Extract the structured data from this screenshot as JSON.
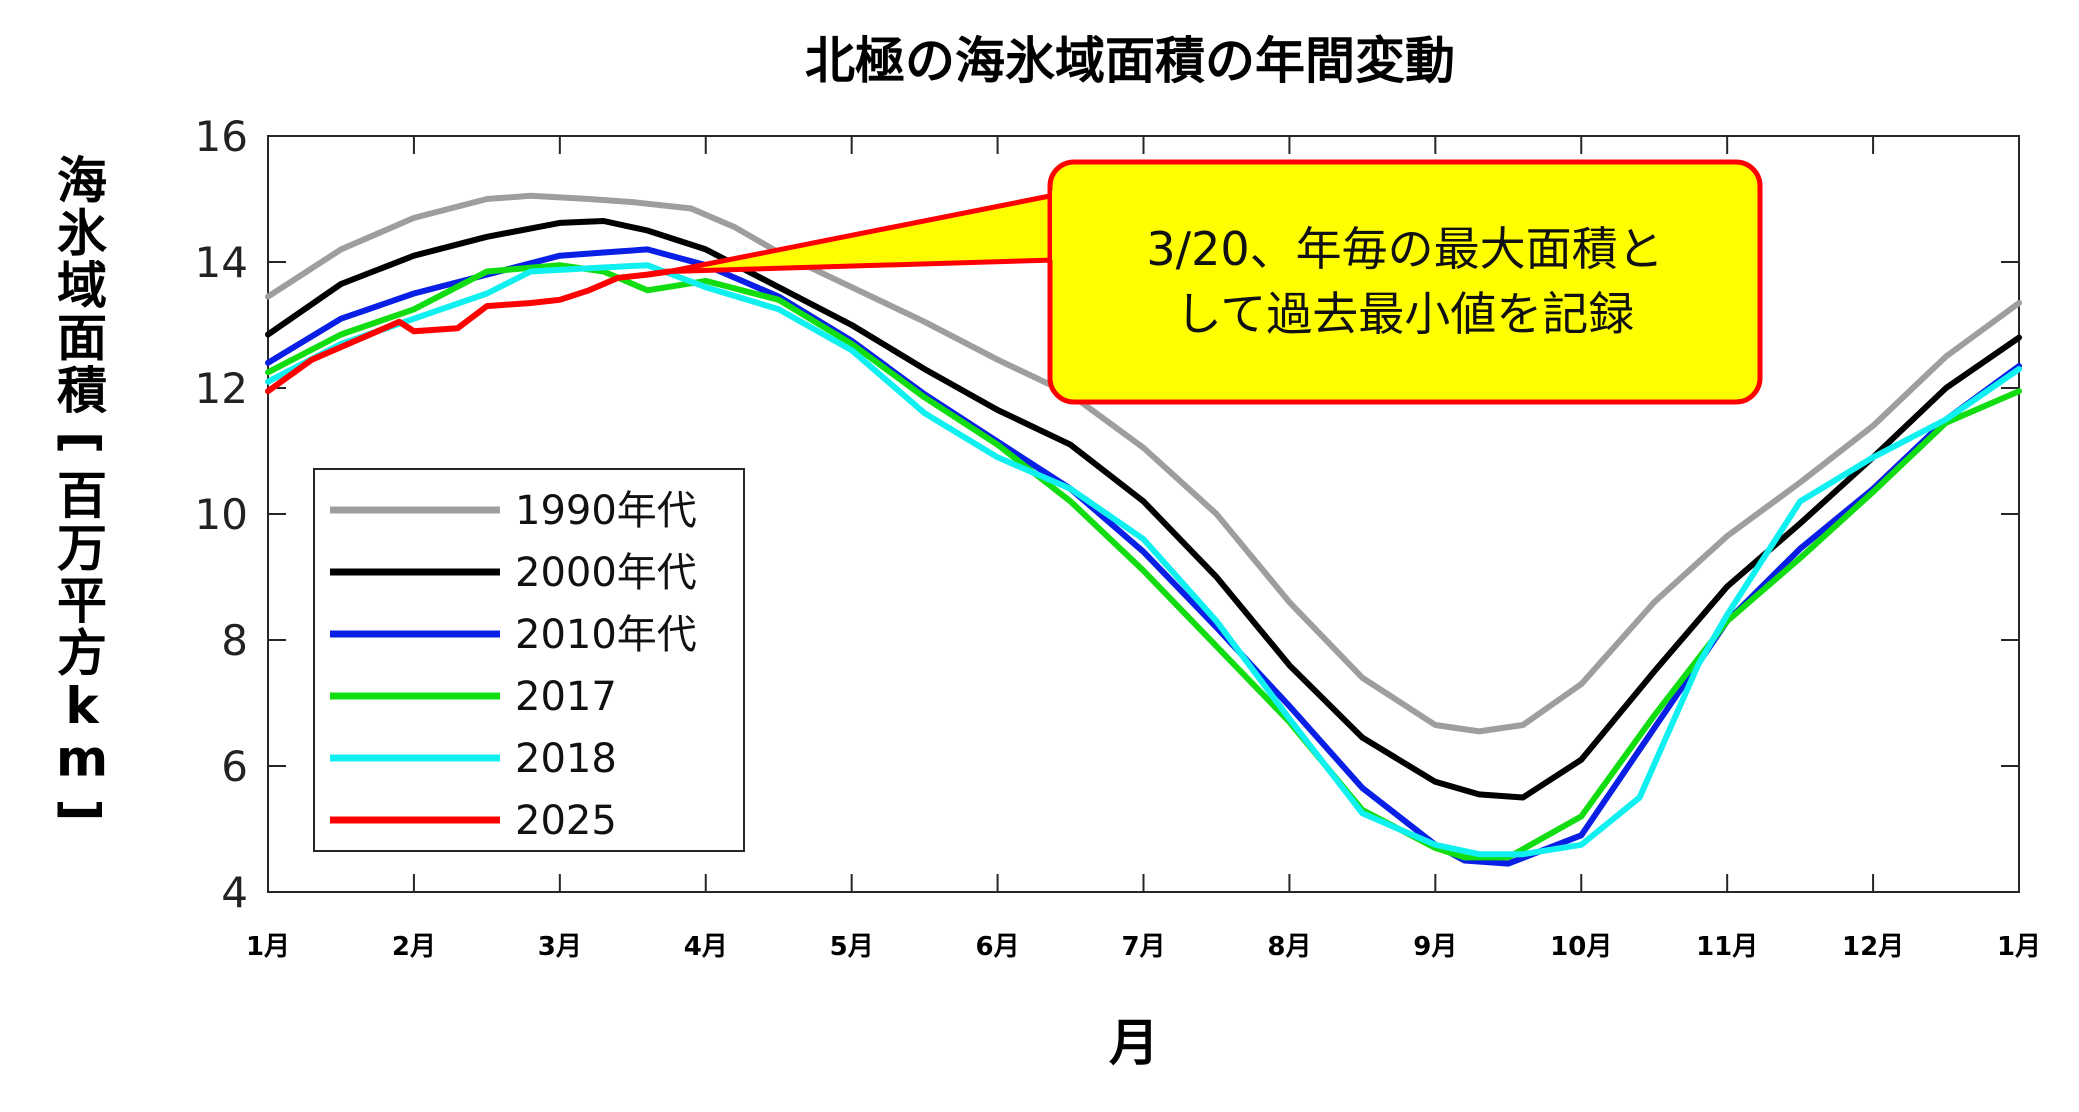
{
  "chart_data": {
    "type": "line",
    "title": "北極の海氷域面積の年間変動",
    "xlabel": "月",
    "ylabel": "海氷域面積[百万平方km]",
    "ylim": [
      4,
      16
    ],
    "yticks": [
      "4",
      "6",
      "8",
      "10",
      "12",
      "14",
      "16"
    ],
    "xlim": [
      1,
      13
    ],
    "xticks": [
      "1月",
      "2月",
      "3月",
      "4月",
      "5月",
      "6月",
      "7月",
      "8月",
      "9月",
      "10月",
      "11月",
      "12月",
      "1月"
    ],
    "grid": false,
    "legend_position": "lower-left",
    "series": [
      {
        "name": "1990年代",
        "color": "#9e9e9e",
        "points": [
          [
            1.0,
            13.45
          ],
          [
            1.5,
            14.2
          ],
          [
            2.0,
            14.7
          ],
          [
            2.5,
            15.0
          ],
          [
            2.8,
            15.05
          ],
          [
            3.2,
            15.0
          ],
          [
            3.5,
            14.95
          ],
          [
            3.9,
            14.85
          ],
          [
            4.2,
            14.55
          ],
          [
            4.5,
            14.15
          ],
          [
            5.0,
            13.6
          ],
          [
            5.5,
            13.05
          ],
          [
            6.0,
            12.45
          ],
          [
            6.5,
            11.9
          ],
          [
            7.0,
            11.05
          ],
          [
            7.5,
            10.0
          ],
          [
            8.0,
            8.6
          ],
          [
            8.5,
            7.4
          ],
          [
            9.0,
            6.65
          ],
          [
            9.3,
            6.55
          ],
          [
            9.6,
            6.65
          ],
          [
            10.0,
            7.3
          ],
          [
            10.5,
            8.6
          ],
          [
            11.0,
            9.65
          ],
          [
            11.5,
            10.5
          ],
          [
            12.0,
            11.4
          ],
          [
            12.5,
            12.5
          ],
          [
            13.0,
            13.35
          ]
        ]
      },
      {
        "name": "2000年代",
        "color": "#000000",
        "points": [
          [
            1.0,
            12.85
          ],
          [
            1.5,
            13.65
          ],
          [
            2.0,
            14.1
          ],
          [
            2.5,
            14.4
          ],
          [
            3.0,
            14.62
          ],
          [
            3.3,
            14.65
          ],
          [
            3.6,
            14.5
          ],
          [
            4.0,
            14.2
          ],
          [
            4.5,
            13.6
          ],
          [
            5.0,
            13.0
          ],
          [
            5.5,
            12.3
          ],
          [
            6.0,
            11.65
          ],
          [
            6.5,
            11.1
          ],
          [
            7.0,
            10.2
          ],
          [
            7.5,
            9.0
          ],
          [
            8.0,
            7.6
          ],
          [
            8.5,
            6.45
          ],
          [
            9.0,
            5.75
          ],
          [
            9.3,
            5.55
          ],
          [
            9.6,
            5.5
          ],
          [
            10.0,
            6.1
          ],
          [
            10.5,
            7.5
          ],
          [
            11.0,
            8.85
          ],
          [
            11.5,
            9.85
          ],
          [
            12.0,
            10.9
          ],
          [
            12.5,
            12.0
          ],
          [
            13.0,
            12.8
          ]
        ]
      },
      {
        "name": "2010年代",
        "color": "#0a1fe6",
        "points": [
          [
            1.0,
            12.4
          ],
          [
            1.5,
            13.1
          ],
          [
            2.0,
            13.5
          ],
          [
            2.5,
            13.8
          ],
          [
            3.0,
            14.1
          ],
          [
            3.3,
            14.15
          ],
          [
            3.6,
            14.2
          ],
          [
            4.0,
            13.95
          ],
          [
            4.5,
            13.45
          ],
          [
            5.0,
            12.75
          ],
          [
            5.5,
            11.9
          ],
          [
            6.0,
            11.15
          ],
          [
            6.5,
            10.4
          ],
          [
            7.0,
            9.4
          ],
          [
            7.5,
            8.2
          ],
          [
            8.0,
            6.95
          ],
          [
            8.5,
            5.65
          ],
          [
            9.0,
            4.75
          ],
          [
            9.2,
            4.5
          ],
          [
            9.5,
            4.45
          ],
          [
            10.0,
            4.9
          ],
          [
            10.5,
            6.6
          ],
          [
            11.0,
            8.3
          ],
          [
            11.5,
            9.45
          ],
          [
            12.0,
            10.4
          ],
          [
            12.5,
            11.5
          ],
          [
            13.0,
            12.35
          ]
        ]
      },
      {
        "name": "2017",
        "color": "#11dd11",
        "points": [
          [
            1.0,
            12.25
          ],
          [
            1.5,
            12.85
          ],
          [
            2.0,
            13.25
          ],
          [
            2.5,
            13.85
          ],
          [
            3.0,
            13.95
          ],
          [
            3.3,
            13.85
          ],
          [
            3.6,
            13.55
          ],
          [
            4.0,
            13.7
          ],
          [
            4.5,
            13.4
          ],
          [
            5.0,
            12.7
          ],
          [
            5.5,
            11.85
          ],
          [
            6.0,
            11.1
          ],
          [
            6.5,
            10.2
          ],
          [
            7.0,
            9.1
          ],
          [
            7.5,
            7.9
          ],
          [
            8.0,
            6.7
          ],
          [
            8.5,
            5.3
          ],
          [
            9.0,
            4.7
          ],
          [
            9.2,
            4.55
          ],
          [
            9.5,
            4.55
          ],
          [
            10.0,
            5.2
          ],
          [
            10.5,
            6.8
          ],
          [
            11.0,
            8.3
          ],
          [
            11.5,
            9.3
          ],
          [
            12.0,
            10.35
          ],
          [
            12.5,
            11.45
          ],
          [
            13.0,
            11.95
          ]
        ]
      },
      {
        "name": "2018",
        "color": "#10f0f0",
        "points": [
          [
            1.0,
            12.1
          ],
          [
            1.5,
            12.7
          ],
          [
            2.0,
            13.1
          ],
          [
            2.5,
            13.5
          ],
          [
            2.8,
            13.85
          ],
          [
            3.2,
            13.9
          ],
          [
            3.6,
            13.95
          ],
          [
            4.0,
            13.6
          ],
          [
            4.5,
            13.25
          ],
          [
            5.0,
            12.6
          ],
          [
            5.5,
            11.6
          ],
          [
            6.0,
            10.9
          ],
          [
            6.5,
            10.4
          ],
          [
            7.0,
            9.6
          ],
          [
            7.5,
            8.3
          ],
          [
            8.0,
            6.75
          ],
          [
            8.5,
            5.25
          ],
          [
            9.0,
            4.75
          ],
          [
            9.3,
            4.6
          ],
          [
            9.6,
            4.6
          ],
          [
            10.0,
            4.75
          ],
          [
            10.4,
            5.5
          ],
          [
            10.8,
            7.6
          ],
          [
            11.0,
            8.4
          ],
          [
            11.5,
            10.2
          ],
          [
            12.0,
            10.9
          ],
          [
            12.5,
            11.5
          ],
          [
            13.0,
            12.3
          ]
        ]
      },
      {
        "name": "2025",
        "color": "#ff0000",
        "points": [
          [
            1.0,
            11.95
          ],
          [
            1.3,
            12.45
          ],
          [
            1.6,
            12.75
          ],
          [
            1.9,
            13.05
          ],
          [
            2.0,
            12.9
          ],
          [
            2.3,
            12.95
          ],
          [
            2.5,
            13.3
          ],
          [
            2.8,
            13.35
          ],
          [
            3.0,
            13.4
          ],
          [
            3.2,
            13.55
          ],
          [
            3.4,
            13.75
          ],
          [
            3.6,
            13.8
          ],
          [
            3.75,
            13.85
          ]
        ]
      }
    ],
    "annotation": {
      "lines": [
        "3/20、年毎の最大面積と",
        "して過去最小値を記録"
      ],
      "target": [
        3.75,
        13.85
      ],
      "fill": "#ffff00",
      "border": "#ff0000"
    }
  }
}
